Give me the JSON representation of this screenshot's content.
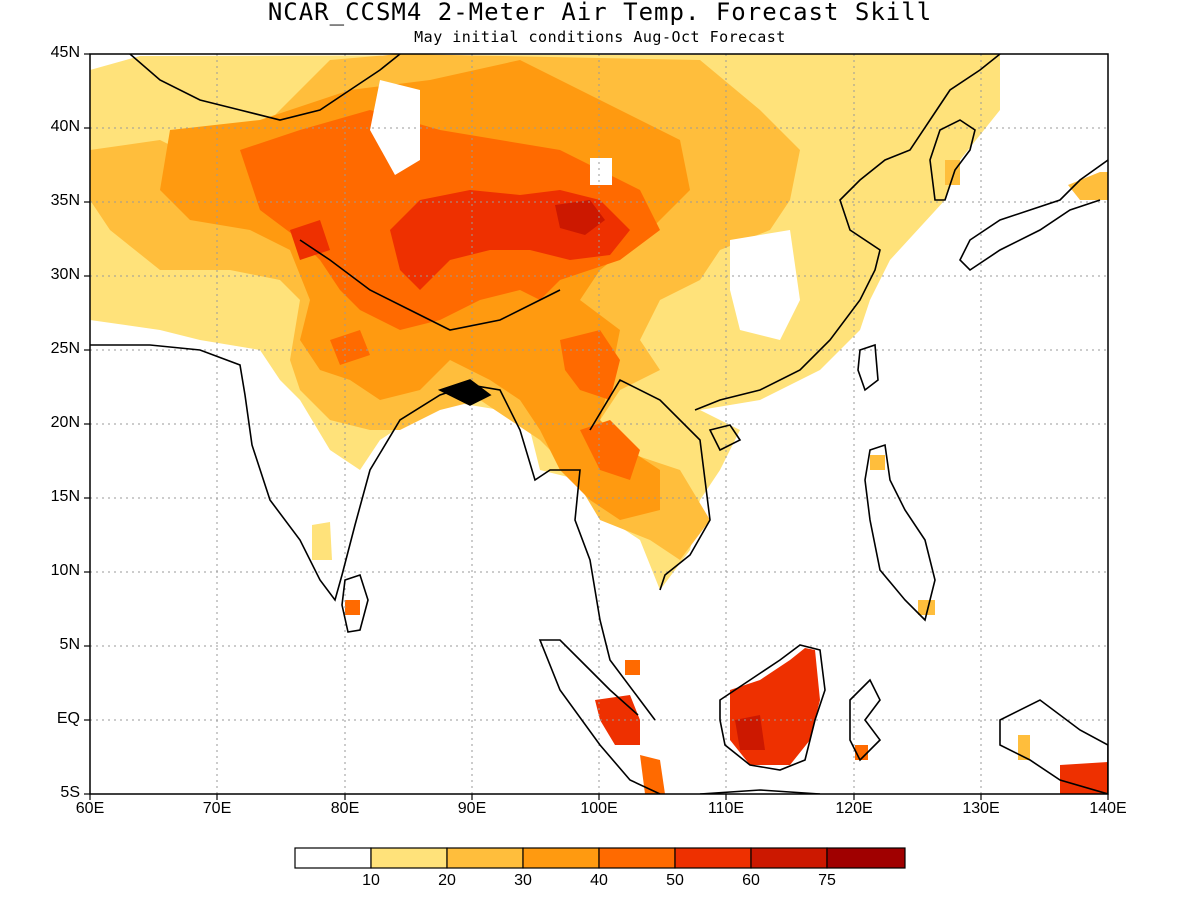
{
  "title": "NCAR_CCSM4 2-Meter Air Temp. Forecast Skill",
  "subtitle": "May initial conditions  Aug-Oct Forecast",
  "map": {
    "lon_range": [
      60,
      140
    ],
    "lat_range": [
      -5,
      45
    ],
    "grid": true,
    "lat_ticks": [
      "45N",
      "40N",
      "35N",
      "30N",
      "25N",
      "20N",
      "15N",
      "10N",
      "5N",
      "EQ",
      "5S"
    ],
    "lon_ticks": [
      "60E",
      "70E",
      "80E",
      "90E",
      "100E",
      "110E",
      "120E",
      "130E",
      "140E"
    ]
  },
  "colorbar": {
    "colors": [
      "#ffffff",
      "#ffe27a",
      "#ffbe3c",
      "#ff9a10",
      "#ff6a00",
      "#ee3000",
      "#cc1800",
      "#a00000"
    ],
    "labels": [
      "10",
      "20",
      "30",
      "40",
      "50",
      "60",
      "75"
    ]
  },
  "chart_data": {
    "type": "heatmap",
    "title": "NCAR_CCSM4 2-Meter Air Temp. Forecast Skill",
    "subtitle": "May initial conditions  Aug-Oct Forecast",
    "xlim": [
      60,
      140
    ],
    "ylim": [
      -5,
      45
    ],
    "levels": [
      10,
      20,
      30,
      40,
      50,
      60,
      75
    ],
    "regions": [
      {
        "lon": 98,
        "lat": 34.5,
        "level": 60
      },
      {
        "lon": 86,
        "lat": 31,
        "level": 50
      },
      {
        "lon": 92,
        "lat": 35,
        "level": 50
      },
      {
        "lon": 112,
        "lat": -1,
        "level": 60
      },
      {
        "lon": 102,
        "lat": -0.5,
        "level": 50
      },
      {
        "lon": 138.5,
        "lat": -4.5,
        "level": 50
      },
      {
        "lon": 81,
        "lat": 25,
        "level": 40
      },
      {
        "lon": 100,
        "lat": 17,
        "level": 40
      },
      {
        "lon": 82,
        "lat": 8,
        "level": 40
      }
    ]
  }
}
